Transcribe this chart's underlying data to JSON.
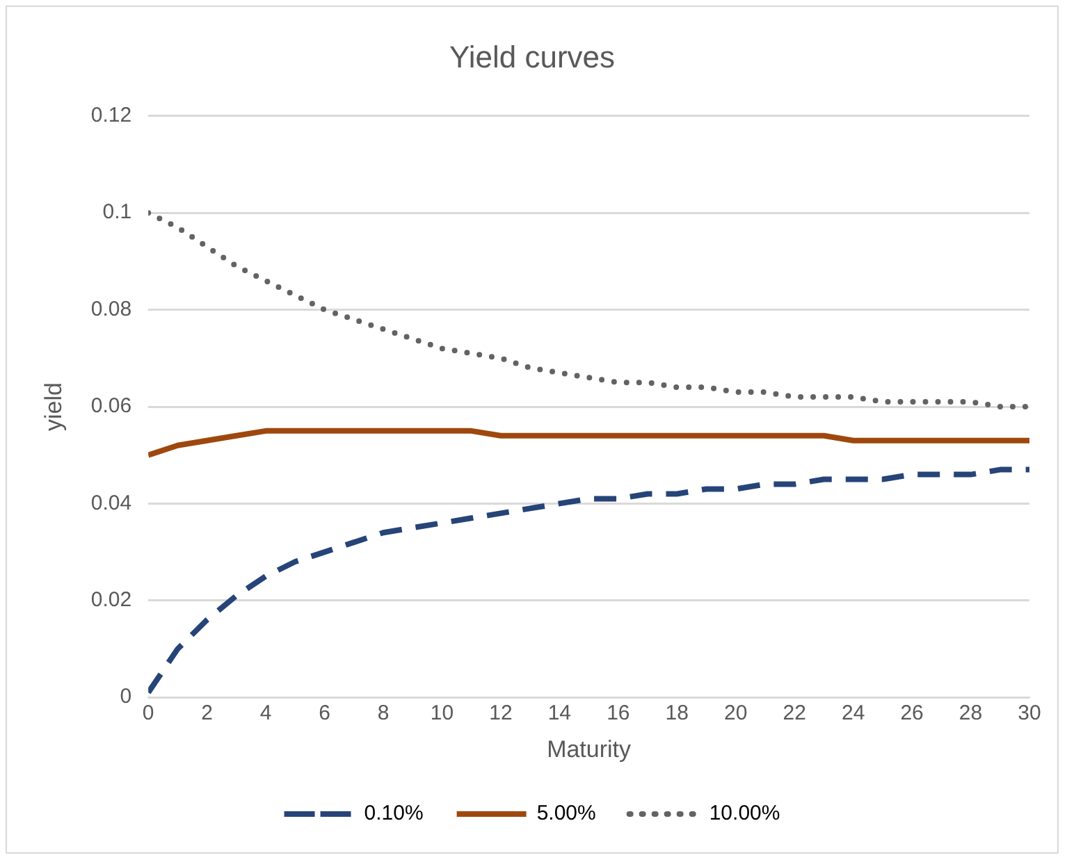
{
  "chart_data": {
    "type": "line",
    "title": "Yield curves",
    "xlabel": "Maturity",
    "ylabel": "yield",
    "x": [
      0,
      1,
      2,
      3,
      4,
      5,
      6,
      7,
      8,
      9,
      10,
      11,
      12,
      13,
      14,
      15,
      16,
      17,
      18,
      19,
      20,
      21,
      22,
      23,
      24,
      25,
      26,
      27,
      28,
      29,
      30
    ],
    "xlim": [
      0,
      30
    ],
    "xticks": [
      0,
      2,
      4,
      6,
      8,
      10,
      12,
      14,
      16,
      18,
      20,
      22,
      24,
      26,
      28,
      30
    ],
    "ylim": [
      0,
      0.12
    ],
    "yticks": [
      0,
      0.02,
      0.04,
      0.06,
      0.08,
      0.1,
      0.12
    ],
    "grid": "y",
    "legend": "bottom",
    "marker": "none",
    "series": [
      {
        "name": "0.10%",
        "color": "#264478",
        "line_style": "dashed",
        "values": [
          0.001,
          0.01,
          0.016,
          0.021,
          0.025,
          0.028,
          0.03,
          0.032,
          0.034,
          0.035,
          0.036,
          0.037,
          0.038,
          0.039,
          0.04,
          0.041,
          0.041,
          0.042,
          0.042,
          0.043,
          0.043,
          0.044,
          0.044,
          0.045,
          0.045,
          0.045,
          0.046,
          0.046,
          0.046,
          0.047,
          0.047
        ]
      },
      {
        "name": "5.00%",
        "color": "#9e480e",
        "line_style": "solid",
        "values": [
          0.05,
          0.052,
          0.053,
          0.054,
          0.055,
          0.055,
          0.055,
          0.055,
          0.055,
          0.055,
          0.055,
          0.055,
          0.054,
          0.054,
          0.054,
          0.054,
          0.054,
          0.054,
          0.054,
          0.054,
          0.054,
          0.054,
          0.054,
          0.054,
          0.053,
          0.053,
          0.053,
          0.053,
          0.053,
          0.053,
          0.053
        ]
      },
      {
        "name": "10.00%",
        "color": "#636363",
        "line_style": "dotted",
        "values": [
          0.1,
          0.097,
          0.093,
          0.089,
          0.086,
          0.083,
          0.08,
          0.078,
          0.076,
          0.074,
          0.072,
          0.071,
          0.07,
          0.068,
          0.067,
          0.066,
          0.065,
          0.065,
          0.064,
          0.064,
          0.063,
          0.063,
          0.062,
          0.062,
          0.062,
          0.061,
          0.061,
          0.061,
          0.061,
          0.06,
          0.06
        ]
      }
    ]
  }
}
